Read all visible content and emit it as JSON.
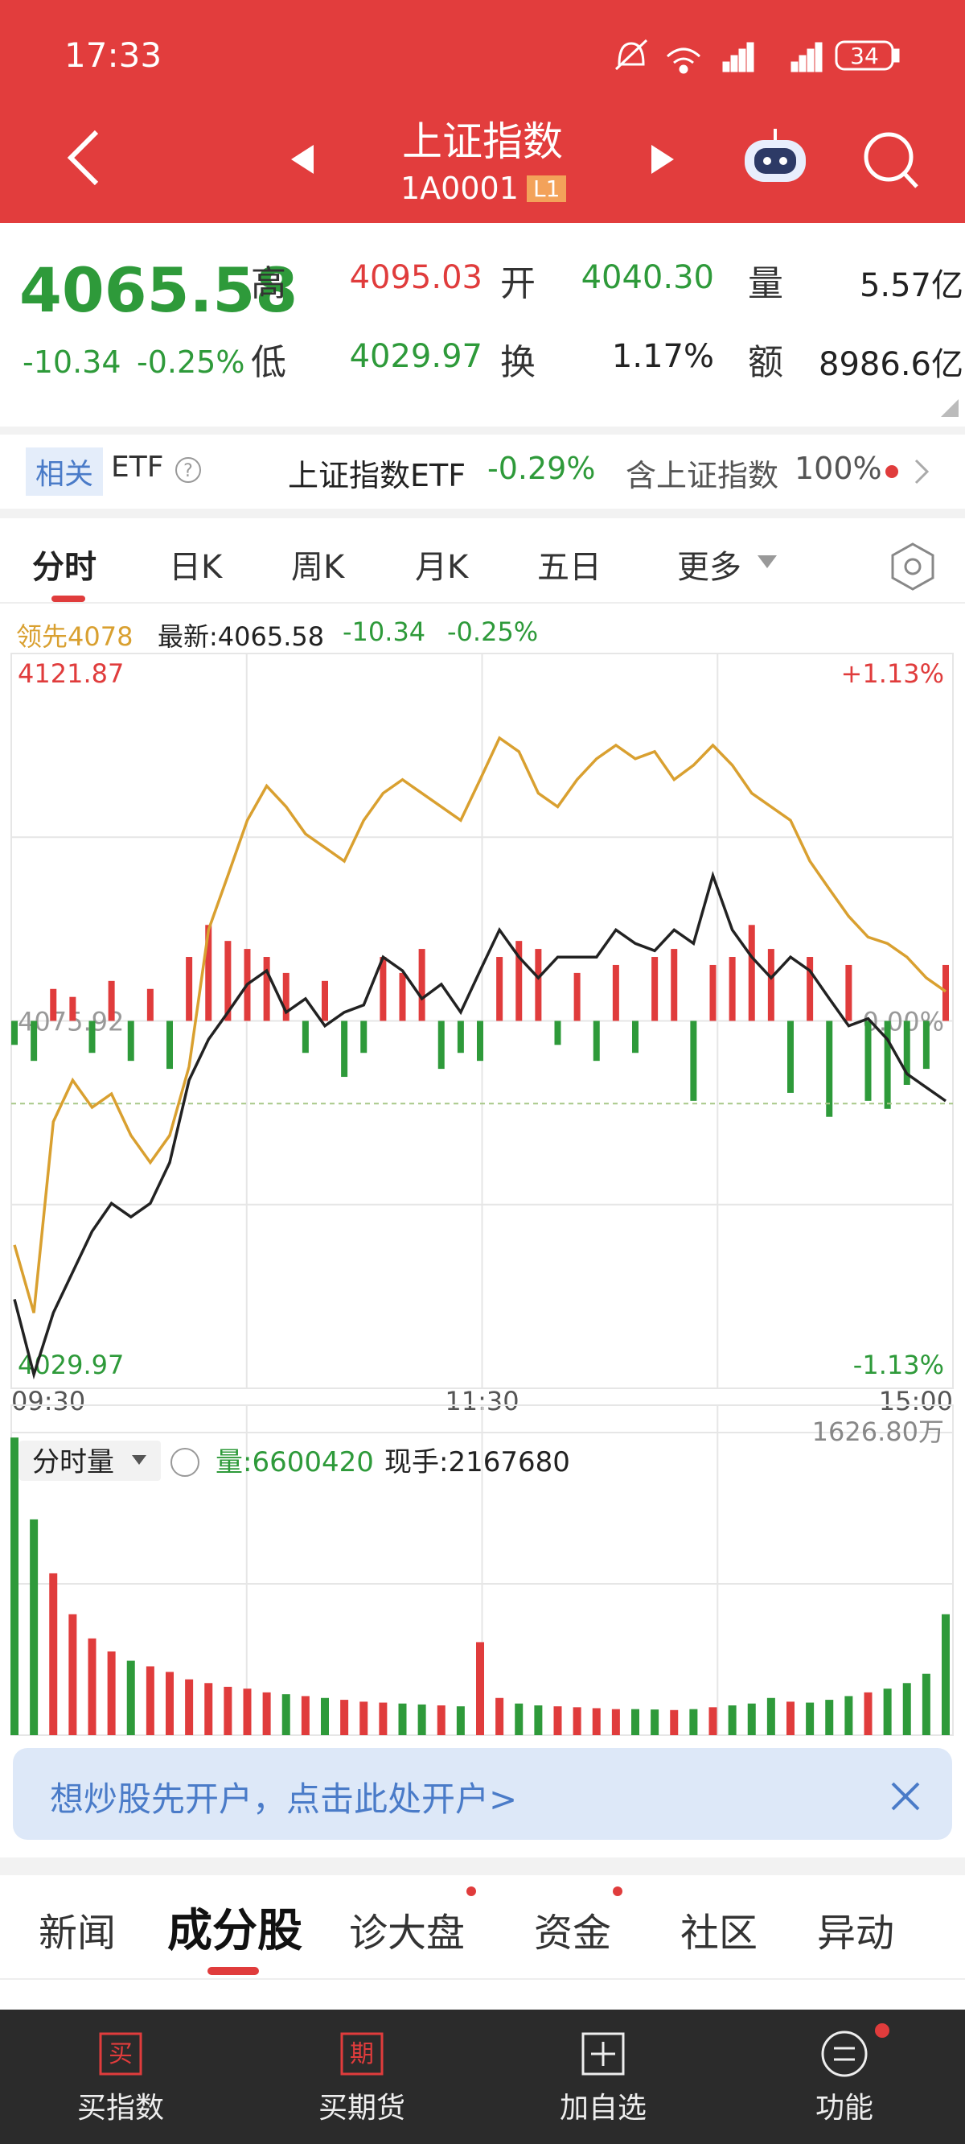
{
  "status_bar": {
    "time": "17:33",
    "battery": "34"
  },
  "header": {
    "title": "上证指数",
    "code": "1A0001",
    "level": "L1"
  },
  "quote": {
    "price": "4065.58",
    "change": "-10.34",
    "change_pct": "-0.25%",
    "fields": [
      {
        "label": "高",
        "value": "4095.03",
        "color": "#e03c3c"
      },
      {
        "label": "开",
        "value": "4040.30",
        "color": "#2e9a3a"
      },
      {
        "label": "量",
        "value": "5.57亿",
        "color": "#222222"
      },
      {
        "label": "低",
        "value": "4029.97",
        "color": "#2e9a3a"
      },
      {
        "label": "换",
        "value": "1.17%",
        "color": "#222222"
      },
      {
        "label": "额",
        "value": "8986.6亿",
        "color": "#222222"
      }
    ]
  },
  "related": {
    "tag": "相关",
    "etf": "ETF",
    "fund": "上证指数ETF",
    "fund_change": "-0.29%",
    "holding": "含上证指数",
    "holding_pct": "100%"
  },
  "chart_tabs": [
    "分时",
    "日K",
    "周K",
    "月K",
    "五日",
    "更多"
  ],
  "chart_info": {
    "leader": "领先4078",
    "latest": "最新:4065.58",
    "change": "-10.34",
    "change_pct": "-0.25%"
  },
  "chart_data": [
    {
      "type": "line",
      "ylim": [
        4029.97,
        4121.87
      ],
      "yticks": [
        4029.97,
        4075.92,
        4121.87
      ],
      "y2lim": [
        -1.13,
        1.13
      ],
      "y2ticks": [
        {
          "value": -1.13,
          "label": "-1.13%"
        },
        {
          "value": 0,
          "label": "0.00%"
        },
        {
          "value": 1.13,
          "label": "+1.13%"
        }
      ],
      "xtick_labels": [
        "09:30",
        "11:30",
        "15:00"
      ],
      "grid": true,
      "series": [
        {
          "color": "#d9a030",
          "values": [
            4047.9,
            4039.4,
            4063.3,
            4068.5,
            4065.1,
            4066.8,
            4061.6,
            4058.2,
            4061.6,
            4070.2,
            4087.3,
            4094.1,
            4101.0,
            4105.3,
            4102.7,
            4099.3,
            4097.6,
            4095.9,
            4101.0,
            4104.4,
            4106.1,
            4104.4,
            4102.7,
            4101.0,
            4106.1,
            4111.3,
            4109.6,
            4104.4,
            4102.7,
            4106.1,
            4108.7,
            4110.4,
            4108.7,
            4109.6,
            4106.1,
            4107.9,
            4110.4,
            4107.9,
            4104.4,
            4102.7,
            4101.0,
            4095.9,
            4092.4,
            4089.0,
            4086.4,
            4085.6,
            4083.9,
            4081.3,
            4079.6
          ]
        },
        {
          "color": "#222222",
          "values": [
            4041.1,
            4031.7,
            4039.4,
            4044.5,
            4049.6,
            4053.1,
            4051.4,
            4053.1,
            4058.2,
            4068.5,
            4073.6,
            4077.0,
            4080.5,
            4082.2,
            4077.0,
            4078.7,
            4075.3,
            4077.0,
            4077.9,
            4083.9,
            4082.2,
            4078.7,
            4080.5,
            4077.0,
            4082.2,
            4087.3,
            4083.9,
            4081.3,
            4083.9,
            4083.9,
            4083.9,
            4087.3,
            4085.6,
            4084.7,
            4087.3,
            4085.6,
            4094.1,
            4087.3,
            4083.9,
            4081.3,
            4083.9,
            4082.2,
            4078.7,
            4075.3,
            4076.2,
            4073.6,
            4069.3,
            4067.6,
            4065.9
          ]
        }
      ],
      "bars": {
        "up_color": "#e03c3c",
        "down_color": "#2e9a3a",
        "values": [
          -3,
          -5,
          4,
          3,
          -4,
          5,
          -5,
          4,
          -6,
          8,
          12,
          10,
          9,
          8,
          6,
          -4,
          5,
          -7,
          -4,
          8,
          6,
          9,
          -6,
          -4,
          -5,
          8,
          10,
          9,
          -3,
          6,
          -5,
          7,
          -4,
          8,
          9,
          -10,
          7,
          8,
          12,
          9,
          -9,
          8,
          -12,
          7,
          -10,
          -11,
          -8,
          -6,
          7
        ]
      }
    },
    {
      "type": "bar",
      "title": "分时量",
      "volume": "量:6600420",
      "hand": "现手:2167680",
      "ylim": [
        0,
        1626.8
      ],
      "yticks": [
        {
          "value": 1626.8,
          "label": "1626.80万"
        }
      ],
      "up_color": "#e03c3c",
      "down_color": "#2e9a3a",
      "values": [
        1600,
        1160,
        870,
        650,
        520,
        450,
        400,
        370,
        340,
        300,
        280,
        260,
        250,
        230,
        220,
        210,
        200,
        190,
        180,
        175,
        170,
        165,
        160,
        155,
        500,
        200,
        170,
        160,
        155,
        150,
        145,
        140,
        140,
        138,
        135,
        140,
        150,
        160,
        170,
        200,
        180,
        175,
        190,
        210,
        230,
        250,
        280,
        330,
        650
      ]
    }
  ],
  "banner": {
    "text": "想炒股先开户，点击此处开户>"
  },
  "news_tabs": [
    "新闻",
    "成分股",
    "诊大盘",
    "资金",
    "社区",
    "异动"
  ],
  "nav": [
    {
      "icon": "买",
      "label": "买指数"
    },
    {
      "icon": "期",
      "label": "买期货"
    },
    {
      "label": "加自选"
    },
    {
      "label": "功能"
    }
  ]
}
